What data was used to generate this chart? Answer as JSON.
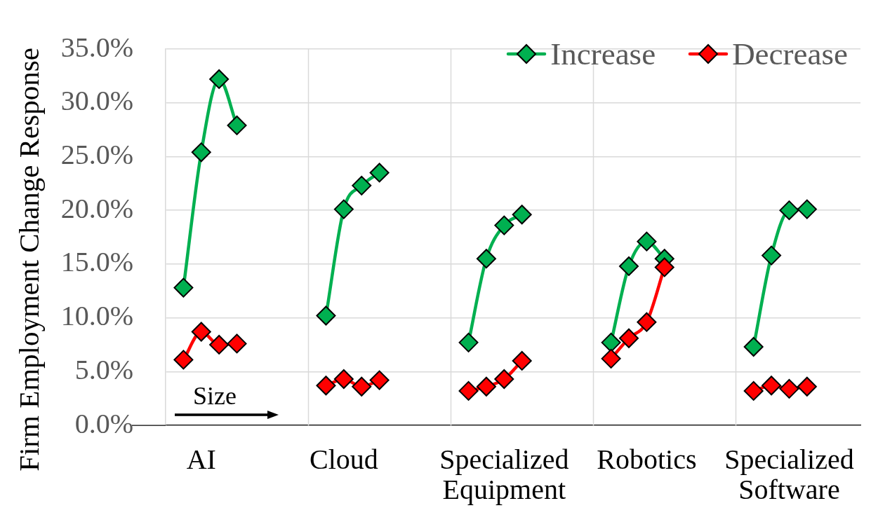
{
  "chart_data": {
    "type": "line",
    "ylabel": "Firm Employment Change Response",
    "annotations": [
      "Size"
    ],
    "categories": [
      null,
      null,
      "AI",
      null,
      null,
      null,
      null,
      null,
      null,
      null,
      "Cloud",
      null,
      null,
      null,
      null,
      null,
      null,
      null,
      null,
      "Specialized Equipment",
      null,
      null,
      null,
      null,
      null,
      null,
      null,
      "Robotics",
      null,
      null,
      null,
      null,
      null,
      null,
      null,
      "Specialized Software",
      null,
      null,
      null,
      null
    ],
    "series": [
      {
        "name": "Increase",
        "color": "#00b050",
        "values": [
          null,
          12.8,
          25.4,
          32.2,
          27.9,
          null,
          null,
          null,
          null,
          10.2,
          20.1,
          22.3,
          23.5,
          null,
          null,
          null,
          null,
          7.7,
          15.5,
          18.6,
          19.6,
          null,
          null,
          null,
          null,
          7.7,
          14.8,
          17.1,
          15.5,
          null,
          null,
          null,
          null,
          7.3,
          15.8,
          20.0,
          20.1,
          null,
          null,
          null
        ]
      },
      {
        "name": "Decrease",
        "color": "#ff0000",
        "values": [
          null,
          6.1,
          8.7,
          7.5,
          7.6,
          null,
          null,
          null,
          null,
          3.7,
          4.3,
          3.6,
          4.2,
          null,
          null,
          null,
          null,
          3.2,
          3.6,
          4.3,
          6.0,
          null,
          null,
          null,
          null,
          6.2,
          8.1,
          9.6,
          14.7,
          null,
          null,
          null,
          null,
          3.2,
          3.7,
          3.4,
          3.6,
          null,
          null,
          null
        ]
      }
    ],
    "ylim": [
      0,
      35
    ],
    "yticks": [
      {
        "value": 0,
        "label": "0.0%"
      },
      {
        "value": 5,
        "label": "5.0%"
      },
      {
        "value": 10,
        "label": "10.0%"
      },
      {
        "value": 15,
        "label": "15.0%"
      },
      {
        "value": 20,
        "label": "20.0%"
      },
      {
        "value": 25,
        "label": "25.0%"
      },
      {
        "value": 30,
        "label": "30.0%"
      },
      {
        "value": 35,
        "label": "35.0%"
      }
    ],
    "grid": true,
    "marker": "diamond",
    "legend": "top right"
  }
}
